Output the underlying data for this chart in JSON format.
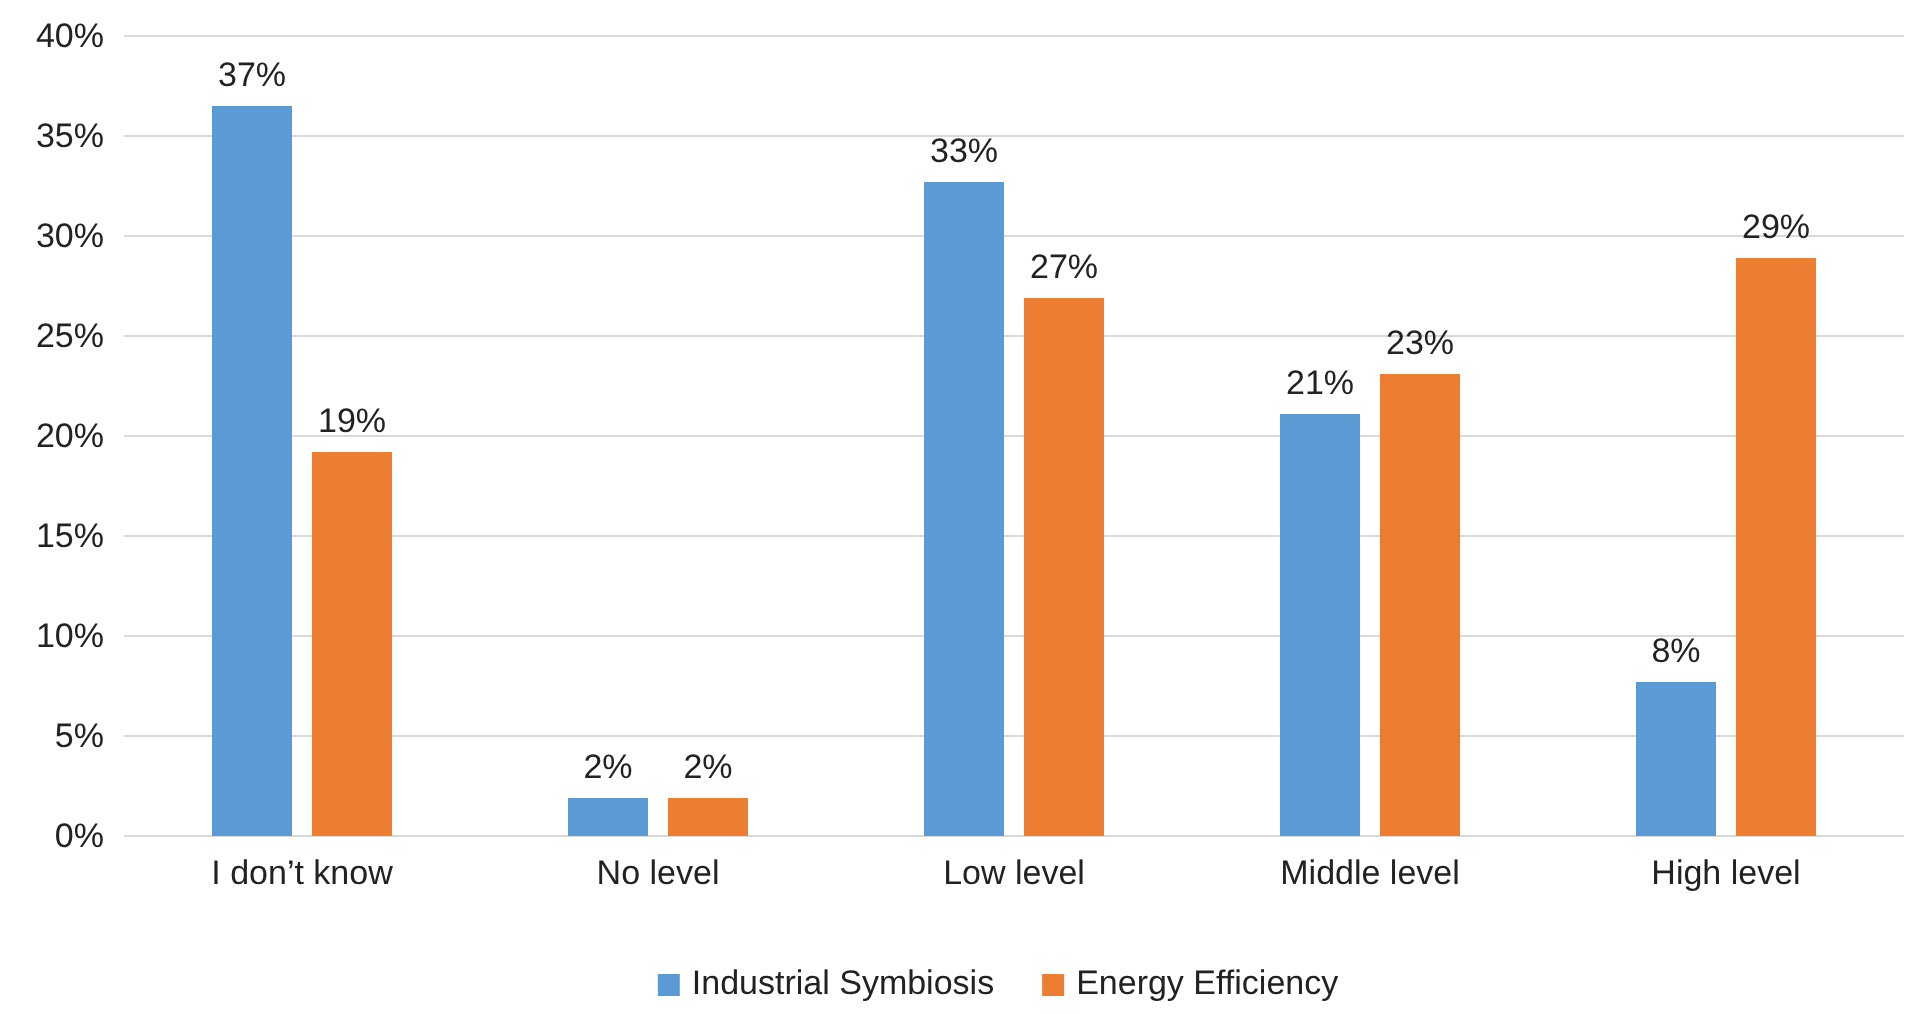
{
  "chart_data": {
    "type": "bar",
    "categories": [
      "I don’t know",
      "No level",
      "Low level",
      "Middle level",
      "High level"
    ],
    "series": [
      {
        "name": "Industrial Symbiosis",
        "color": "#5b9bd5",
        "values": [
          36.5,
          1.9,
          32.7,
          21.1,
          7.7
        ],
        "value_labels": [
          "37%",
          "2%",
          "33%",
          "21%",
          "8%"
        ]
      },
      {
        "name": "Energy Efficiency",
        "color": "#ed7d31",
        "values": [
          19.2,
          1.9,
          26.9,
          23.1,
          28.9
        ],
        "value_labels": [
          "19%",
          "2%",
          "27%",
          "23%",
          "29%"
        ]
      }
    ],
    "ylim": [
      0,
      40
    ],
    "yticks": [
      {
        "value": 0,
        "label": "0%"
      },
      {
        "value": 5,
        "label": "5%"
      },
      {
        "value": 10,
        "label": "10%"
      },
      {
        "value": 15,
        "label": "15%"
      },
      {
        "value": 20,
        "label": "20%"
      },
      {
        "value": 25,
        "label": "25%"
      },
      {
        "value": 30,
        "label": "30%"
      },
      {
        "value": 35,
        "label": "35%"
      },
      {
        "value": 40,
        "label": "40%"
      }
    ],
    "grid": "y",
    "legend": "bottom"
  }
}
